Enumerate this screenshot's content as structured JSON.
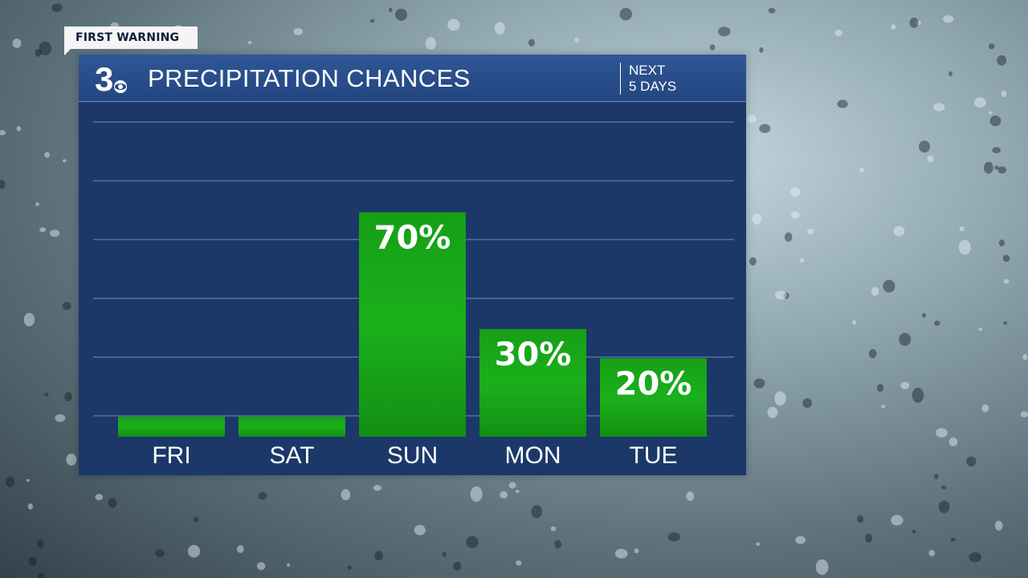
{
  "brand": {
    "tag": "FIRST WARNING",
    "logo_number": "3",
    "logo_icon": "cbs-eye-icon"
  },
  "header": {
    "title": "PRECIPITATION CHANCES",
    "range_line1": "NEXT",
    "range_line2": "5 DAYS"
  },
  "colors": {
    "panel": "#1b3869",
    "header": "#2a4f8f",
    "bar": "#17a317",
    "gridline": "#55709e",
    "text": "#ffffff"
  },
  "chart_data": {
    "type": "bar",
    "title": "PRECIPITATION CHANCES",
    "categories": [
      "FRI",
      "SAT",
      "SUN",
      "MON",
      "TUE"
    ],
    "values": [
      0,
      0,
      70,
      30,
      20
    ],
    "data_labels": [
      "",
      "",
      "70%",
      "30%",
      "20%"
    ],
    "unit": "%",
    "ylim": [
      0,
      100
    ],
    "grid": true,
    "legend": "none"
  }
}
